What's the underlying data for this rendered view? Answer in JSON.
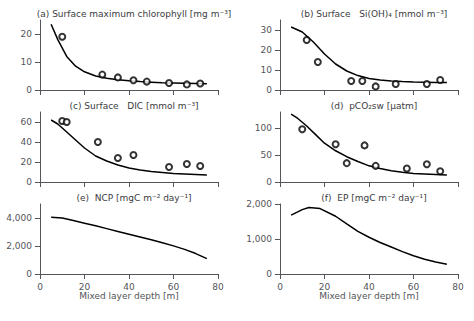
{
  "chart_data": [
    {
      "type": "line",
      "title": "(a) Surface maximum chlorophyll [mg m⁻³]",
      "xlim": [
        0,
        80
      ],
      "ylim": [
        0,
        25
      ],
      "xticks": [
        0,
        20,
        40,
        60,
        80
      ],
      "yticks": [
        0,
        10,
        20
      ],
      "grid": false,
      "tick_labels": "y",
      "series": [
        {
          "type": "line",
          "color": "black",
          "x": [
            5,
            8,
            12,
            16,
            20,
            25,
            30,
            35,
            40,
            45,
            50,
            55,
            60,
            65,
            70,
            75
          ],
          "values": [
            23.5,
            18,
            12,
            8.5,
            6.5,
            5.0,
            4.2,
            3.7,
            3.3,
            3.0,
            2.8,
            2.6,
            2.5,
            2.4,
            2.3,
            2.2
          ]
        },
        {
          "type": "scatter",
          "color": "black",
          "marker": "open_circle",
          "x": [
            10,
            28,
            35,
            42,
            48,
            58,
            66,
            72
          ],
          "values": [
            19,
            5.5,
            4.5,
            3.5,
            3.0,
            2.5,
            2.0,
            2.3
          ]
        }
      ]
    },
    {
      "type": "line",
      "title": "(b) Surface   Si(OH)₄ [mmol m⁻³]",
      "xlim": [
        0,
        80
      ],
      "ylim": [
        0,
        35
      ],
      "xticks": [
        0,
        20,
        40,
        60,
        80
      ],
      "yticks": [
        0,
        10,
        20,
        30
      ],
      "grid": false,
      "tick_labels": "y",
      "series": [
        {
          "type": "line",
          "color": "black",
          "x": [
            5,
            10,
            15,
            20,
            25,
            30,
            35,
            40,
            45,
            50,
            55,
            60,
            65,
            70,
            75
          ],
          "values": [
            31.5,
            29,
            24,
            18,
            13,
            9.5,
            7.2,
            5.8,
            5.0,
            4.5,
            4.2,
            4.0,
            3.9,
            3.8,
            3.8
          ]
        },
        {
          "type": "scatter",
          "color": "black",
          "marker": "open_circle",
          "x": [
            12,
            17,
            32,
            37,
            43,
            52,
            66,
            72
          ],
          "values": [
            25,
            14,
            4.5,
            4.5,
            1.8,
            3.0,
            3.0,
            5.0
          ]
        }
      ]
    },
    {
      "type": "line",
      "title": "(c) Surface   DIC [mmol m⁻³]",
      "xlim": [
        0,
        80
      ],
      "ylim": [
        0,
        70
      ],
      "xticks": [
        0,
        20,
        40,
        60,
        80
      ],
      "yticks": [
        0,
        20,
        40,
        60
      ],
      "grid": false,
      "tick_labels": "y",
      "series": [
        {
          "type": "line",
          "color": "black",
          "x": [
            5,
            8,
            12,
            16,
            20,
            25,
            30,
            35,
            40,
            45,
            50,
            55,
            60,
            65,
            70,
            75
          ],
          "values": [
            62,
            58,
            50,
            42,
            34,
            26,
            21,
            17,
            14,
            12,
            10.5,
            9.5,
            8.5,
            8.0,
            7.5,
            7.0
          ]
        },
        {
          "type": "scatter",
          "color": "black",
          "marker": "open_circle",
          "x": [
            10,
            12,
            26,
            35,
            42,
            58,
            66,
            72
          ],
          "values": [
            61,
            60,
            40,
            24,
            27,
            15,
            18,
            16
          ]
        }
      ]
    },
    {
      "type": "line",
      "title": "(d)  pCO₂sw [μatm]",
      "xlim": [
        0,
        80
      ],
      "ylim": [
        0,
        130
      ],
      "xticks": [
        0,
        20,
        40,
        60,
        80
      ],
      "yticks": [
        0,
        50,
        100
      ],
      "grid": false,
      "tick_labels": "y",
      "series": [
        {
          "type": "line",
          "color": "black",
          "x": [
            5,
            8,
            12,
            16,
            20,
            25,
            30,
            35,
            40,
            45,
            50,
            55,
            60,
            65,
            70,
            75
          ],
          "values": [
            126,
            118,
            104,
            88,
            72,
            58,
            47,
            38,
            30,
            25,
            21,
            18,
            16,
            15,
            14,
            13
          ]
        },
        {
          "type": "scatter",
          "color": "black",
          "marker": "open_circle",
          "x": [
            10,
            25,
            30,
            38,
            43,
            57,
            66,
            72
          ],
          "values": [
            98,
            70,
            35,
            68,
            30,
            25,
            33,
            20
          ]
        }
      ]
    },
    {
      "type": "line",
      "title": "(e)  NCP [mgC m⁻² day⁻¹]",
      "xlabel": "Mixed layer depth [m]",
      "xlim": [
        0,
        80
      ],
      "ylim": [
        0,
        5000
      ],
      "xticks": [
        0,
        20,
        40,
        60,
        80
      ],
      "yticks": [
        0,
        2000,
        4000
      ],
      "grid": false,
      "series": [
        {
          "type": "line",
          "color": "black",
          "x": [
            5,
            10,
            15,
            20,
            25,
            30,
            35,
            40,
            45,
            50,
            55,
            60,
            65,
            70,
            75
          ],
          "values": [
            4050,
            4000,
            3820,
            3630,
            3440,
            3240,
            3040,
            2840,
            2640,
            2440,
            2230,
            2010,
            1760,
            1460,
            1100
          ]
        }
      ]
    },
    {
      "type": "line",
      "title": "(f)  EP [mgC m⁻² day⁻¹]",
      "xlabel": "Mixed layer depth [m]",
      "xlim": [
        0,
        80
      ],
      "ylim": [
        0,
        2000
      ],
      "xticks": [
        0,
        20,
        40,
        60,
        80
      ],
      "yticks": [
        0,
        1000,
        2000
      ],
      "grid": false,
      "series": [
        {
          "type": "line",
          "color": "black",
          "x": [
            5,
            10,
            13,
            18,
            25,
            30,
            35,
            40,
            45,
            50,
            55,
            60,
            65,
            70,
            75
          ],
          "values": [
            1680,
            1840,
            1900,
            1870,
            1650,
            1430,
            1220,
            1050,
            900,
            770,
            640,
            520,
            420,
            340,
            280
          ]
        }
      ]
    }
  ]
}
